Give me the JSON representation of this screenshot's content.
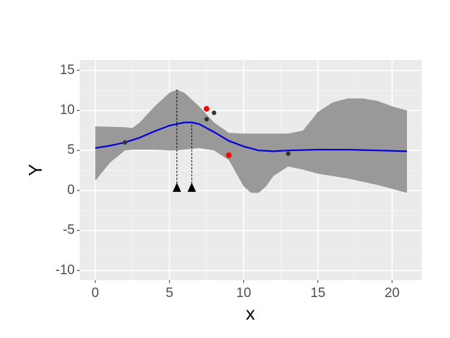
{
  "chart_data": {
    "type": "gp-band",
    "xlabel": "x",
    "ylabel": "Y",
    "xlim": [
      -1.05,
      22.0
    ],
    "ylim": [
      -11.2,
      16.3
    ],
    "xticks": [
      0,
      5,
      10,
      15,
      20
    ],
    "yticks": [
      15,
      10,
      5,
      0,
      -5,
      -10
    ],
    "minor_xticks": [
      2.5,
      7.5,
      12.5,
      17.5
    ],
    "minor_yticks": [
      12.5,
      7.5,
      2.5,
      -2.5,
      -7.5
    ],
    "grid": true,
    "band": {
      "color": "#999999",
      "x": [
        0,
        1,
        2,
        2.5,
        3,
        4,
        5,
        5.5,
        6,
        7,
        8,
        9,
        10,
        10.5,
        11,
        11.5,
        12,
        13,
        14,
        15,
        16,
        17,
        18,
        19,
        20,
        21
      ],
      "upper": [
        8.0,
        7.95,
        7.9,
        7.8,
        8.5,
        10.5,
        12.2,
        12.6,
        12.2,
        10.5,
        8.5,
        7.2,
        7.1,
        7.1,
        7.1,
        7.1,
        7.1,
        7.1,
        7.5,
        9.8,
        11.0,
        11.5,
        11.5,
        11.2,
        10.5,
        10.0
      ],
      "lower": [
        1.2,
        3.5,
        5.0,
        5.1,
        5.1,
        5.1,
        5.0,
        5.0,
        5.1,
        5.3,
        5.0,
        3.8,
        0.5,
        -0.3,
        -0.3,
        0.5,
        1.8,
        3.0,
        2.6,
        2.1,
        1.8,
        1.5,
        1.1,
        0.7,
        0.2,
        -0.3
      ]
    },
    "line": {
      "color": "#0000dd",
      "x": [
        0,
        1,
        2,
        3,
        4,
        5,
        6,
        6.5,
        7,
        8,
        9,
        10,
        11,
        12,
        13,
        15,
        17,
        19,
        21
      ],
      "values": [
        5.3,
        5.6,
        6.0,
        6.6,
        7.4,
        8.1,
        8.5,
        8.5,
        8.3,
        7.3,
        6.2,
        5.5,
        5.0,
        4.9,
        5.0,
        5.1,
        5.1,
        5.0,
        4.9
      ]
    },
    "points": {
      "color": "#333333",
      "x": [
        2,
        7.5,
        8,
        13
      ],
      "values": [
        6.0,
        8.9,
        9.7,
        4.6
      ]
    },
    "highlight": {
      "color": "#ff0000",
      "x": [
        7.5,
        9
      ],
      "values": [
        10.2,
        4.4
      ]
    },
    "markers": {
      "color": "#000000",
      "x": [
        5.5,
        6.5
      ],
      "tops": [
        12.6,
        8.5
      ],
      "base": 0
    }
  }
}
